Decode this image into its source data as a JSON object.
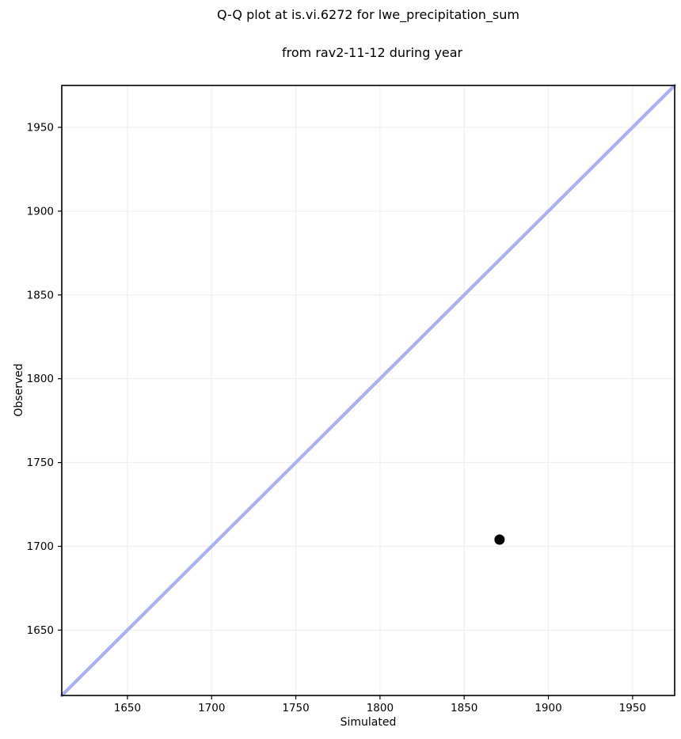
{
  "figure": {
    "background_color": "#ffffff"
  },
  "chart_data": {
    "type": "scatter",
    "title": "Q-Q plot at is.vi.6272 for lwe_precipitation_sum\nfrom rav2-11-12 during year",
    "title_lines": [
      "Q-Q plot at is.vi.6272 for lwe_precipitation_sum",
      "from rav2-11-12 during year"
    ],
    "xlabel": "Simulated",
    "ylabel": "Observed",
    "xlim": [
      1611,
      1975
    ],
    "ylim": [
      1611,
      1975
    ],
    "xticks": [
      1650,
      1700,
      1750,
      1800,
      1850,
      1900,
      1950
    ],
    "yticks": [
      1650,
      1700,
      1750,
      1800,
      1850,
      1900,
      1950
    ],
    "grid": true,
    "legend": false,
    "grid_color": "#f0f0f0",
    "spine_color": "#000000",
    "tick_label_color": "#000000",
    "identity_line": {
      "name": "identity-line",
      "x": [
        1611,
        1975
      ],
      "y": [
        1611,
        1975
      ],
      "color": "#aab1f2",
      "stroke_width": 4.2
    },
    "series": [
      {
        "name": "qq-points",
        "marker": "circle",
        "color": "#000000",
        "radius": 6.5,
        "points": [
          {
            "x": 1871,
            "y": 1704
          }
        ]
      }
    ]
  }
}
